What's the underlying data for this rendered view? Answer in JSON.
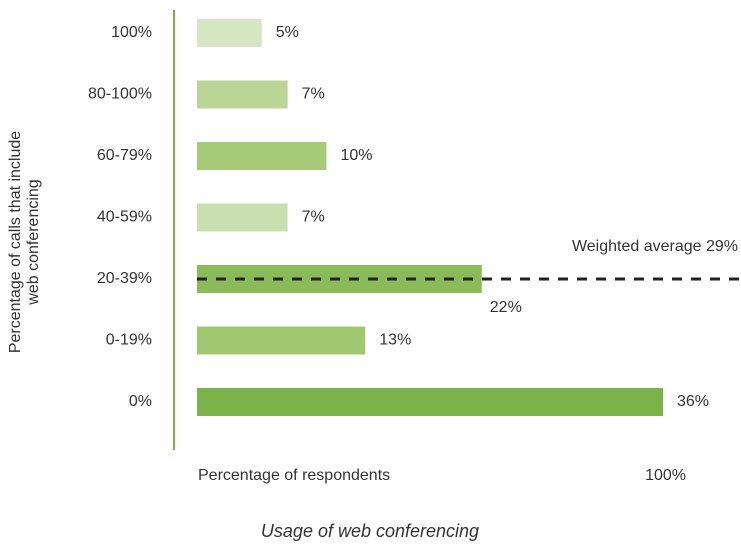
{
  "chart_data": {
    "type": "bar",
    "orientation": "horizontal",
    "title": "Usage of web conferencing",
    "ylabel_lines": [
      "Percentage of calls that include",
      "web conferencing"
    ],
    "xlabel": "Percentage of respondents",
    "x_end_label": "100%",
    "categories": [
      "100%",
      "80-100%",
      "60-79%",
      "40-59%",
      "20-39%",
      "0-19%",
      "0%"
    ],
    "values": [
      5,
      7,
      10,
      7,
      22,
      13,
      36
    ],
    "value_labels": [
      "5%",
      "7%",
      "10%",
      "7%",
      "22%",
      "13%",
      "36%"
    ],
    "colors": [
      "#d5e6c3",
      "#bad596",
      "#a6cb78",
      "#c9dfb0",
      "#8bbb58",
      "#a0c870",
      "#7cb24a"
    ],
    "xlim": [
      0,
      36
    ],
    "annotation": "Weighted average 29%",
    "annotation_category": 4
  }
}
